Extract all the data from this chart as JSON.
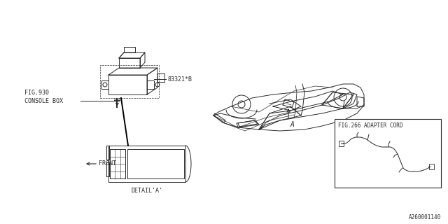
{
  "bg_color": "#ffffff",
  "line_color": "#2a2a2a",
  "text_color": "#2a2a2a",
  "part_number": "83321*B",
  "fig_console_line1": "FIG.930",
  "fig_console_line2": "CONSOLE BOX",
  "fig_adapter": "FIG.266 ADAPTER CORD",
  "detail_label": "DETAIL'A'",
  "front_label": "FRONT",
  "callout_a": "A",
  "diagram_id": "A260001140",
  "label_fontsize": 6.0,
  "small_fontsize": 5.5
}
